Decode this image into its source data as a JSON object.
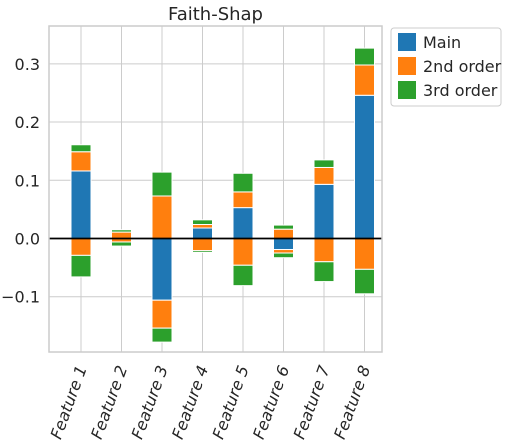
{
  "chart_data": {
    "type": "bar",
    "stacked": true,
    "diverging": true,
    "title": "Faith-Shap",
    "xlabel": "",
    "ylabel": "",
    "categories": [
      "Feature 1",
      "Feature 2",
      "Feature 3",
      "Feature 4",
      "Feature 5",
      "Feature 6",
      "Feature 7",
      "Feature 8"
    ],
    "ylim": [
      -0.195,
      0.365
    ],
    "yticks": [
      -0.1,
      0.0,
      0.1,
      0.2,
      0.3
    ],
    "ytick_labels": [
      "−0.1",
      "0.0",
      "0.1",
      "0.2",
      "0.3"
    ],
    "grid": true,
    "legend_position": "outside-top-right",
    "series": [
      {
        "name": "Main",
        "color": "#1f77b4",
        "positive": [
          0.116,
          0.0,
          0.0,
          0.018,
          0.053,
          0.0,
          0.093,
          0.246
        ],
        "negative": [
          0.0,
          0.0,
          -0.106,
          0.0,
          0.0,
          -0.019,
          0.0,
          0.0
        ]
      },
      {
        "name": "2nd order",
        "color": "#ff7f0e",
        "positive": [
          0.033,
          0.011,
          0.073,
          0.006,
          0.027,
          0.016,
          0.029,
          0.052
        ],
        "negative": [
          -0.029,
          -0.006,
          -0.048,
          -0.021,
          -0.046,
          -0.006,
          -0.04,
          -0.053
        ]
      },
      {
        "name": "3rd order",
        "color": "#2ca02c",
        "positive": [
          0.012,
          0.004,
          0.041,
          0.008,
          0.032,
          0.007,
          0.013,
          0.029
        ],
        "negative": [
          -0.037,
          -0.007,
          -0.024,
          -0.003,
          -0.035,
          -0.008,
          -0.034,
          -0.042
        ]
      }
    ]
  }
}
